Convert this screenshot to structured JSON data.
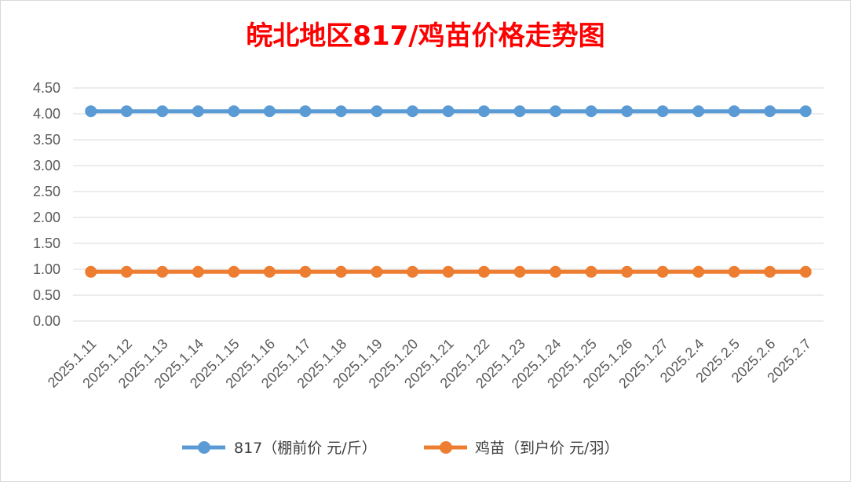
{
  "chart_data": {
    "type": "line",
    "title": "皖北地区817/鸡苗价格走势图",
    "title_color": "#ff0000",
    "categories": [
      "2025.1.11",
      "2025.1.12",
      "2025.1.13",
      "2025.1.14",
      "2025.1.15",
      "2025.1.16",
      "2025.1.17",
      "2025.1.18",
      "2025.1.19",
      "2025.1.20",
      "2025.1.21",
      "2025.1.22",
      "2025.1.23",
      "2025.1.24",
      "2025.1.25",
      "2025.1.26",
      "2025.1.27",
      "2025.2.4",
      "2025.2.5",
      "2025.2.6",
      "2025.2.7"
    ],
    "y_ticks": [
      "0.00",
      "0.50",
      "1.00",
      "1.50",
      "2.00",
      "2.50",
      "3.00",
      "3.50",
      "4.00",
      "4.50"
    ],
    "ylim": [
      0,
      4.5
    ],
    "grid": true,
    "legend_position": "bottom",
    "series": [
      {
        "name": "817（棚前价 元/斤）",
        "color": "#5b9bd5",
        "values": [
          4.05,
          4.05,
          4.05,
          4.05,
          4.05,
          4.05,
          4.05,
          4.05,
          4.05,
          4.05,
          4.05,
          4.05,
          4.05,
          4.05,
          4.05,
          4.05,
          4.05,
          4.05,
          4.05,
          4.05,
          4.05
        ]
      },
      {
        "name": "鸡苗（到户价 元/羽）",
        "color": "#ed7d31",
        "values": [
          0.95,
          0.95,
          0.95,
          0.95,
          0.95,
          0.95,
          0.95,
          0.95,
          0.95,
          0.95,
          0.95,
          0.95,
          0.95,
          0.95,
          0.95,
          0.95,
          0.95,
          0.95,
          0.95,
          0.95,
          0.95
        ]
      }
    ]
  }
}
